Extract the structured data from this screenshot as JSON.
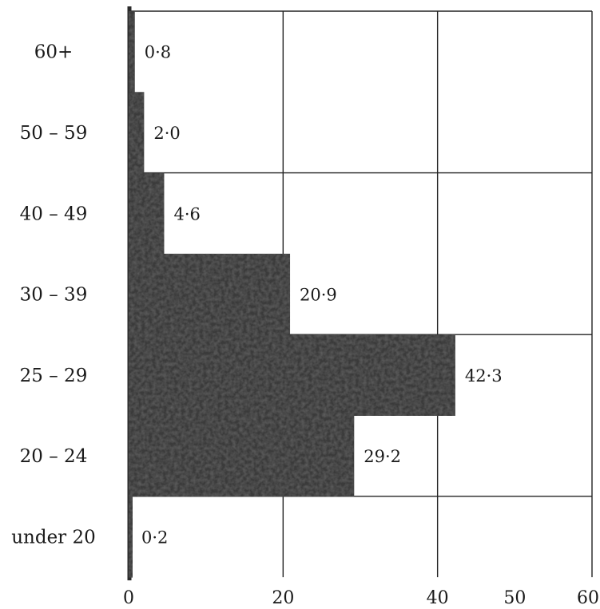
{
  "chart_data": {
    "type": "bar",
    "orientation": "horizontal",
    "categories": [
      "60+",
      "50 – 59",
      "40 – 49",
      "30 – 39",
      "25 – 29",
      "20 – 24",
      "under 20"
    ],
    "values": [
      0.8,
      2.0,
      4.6,
      20.9,
      42.3,
      29.2,
      0.2
    ],
    "value_labels": [
      "0·8",
      "2·0",
      "4·6",
      "20·9",
      "42·3",
      "29·2",
      "0·2"
    ],
    "xlim": [
      0,
      60
    ],
    "x_ticks": [
      0,
      20,
      40,
      50,
      60
    ],
    "x_tick_labels": [
      "0",
      "20",
      "40",
      "50",
      "60"
    ],
    "grid": true,
    "bar_color": "#3a3a3a"
  }
}
